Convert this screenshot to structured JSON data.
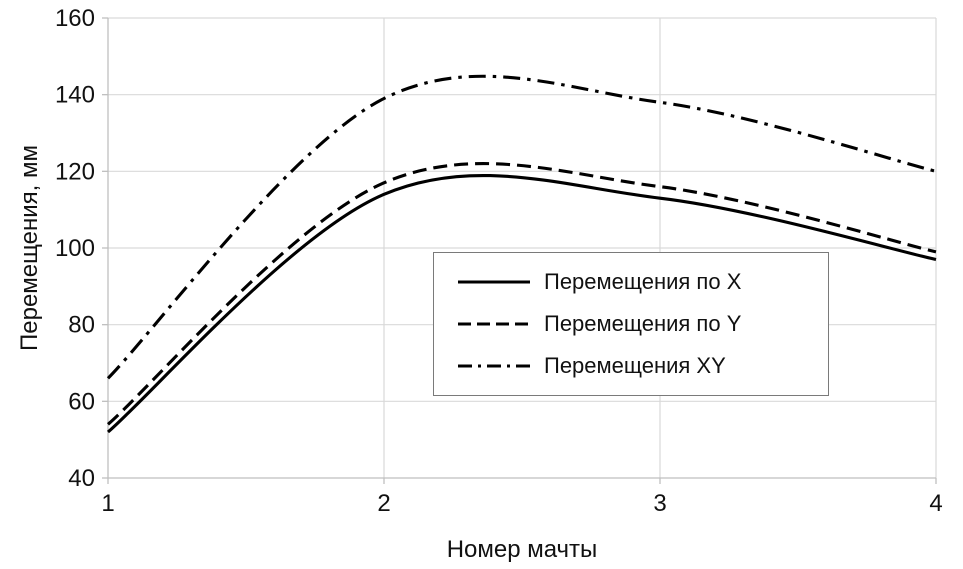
{
  "chart_data": {
    "type": "line",
    "x": [
      1,
      2,
      3,
      4
    ],
    "series": [
      {
        "name": "Перемещения по X",
        "dash": "solid",
        "values": [
          52,
          114,
          113,
          97
        ]
      },
      {
        "name": "Перемещения по Y",
        "dash": "dashed",
        "values": [
          54,
          117,
          116,
          99
        ]
      },
      {
        "name": "Перемещения XY",
        "dash": "dashdot",
        "values": [
          66,
          139,
          138,
          120
        ]
      }
    ],
    "title": "",
    "xlabel": "Номер мачты",
    "ylabel": "Перемещения, мм",
    "xlim": [
      1,
      4
    ],
    "ylim": [
      40,
      160
    ],
    "x_ticks": [
      1,
      2,
      3,
      4
    ],
    "y_ticks": [
      40,
      60,
      80,
      100,
      120,
      140,
      160
    ],
    "grid": true,
    "legend_position": "center",
    "colors": {
      "line": "#000000",
      "grid": "#d9d9d9",
      "axis": "#bfbfbf",
      "text": "#111111"
    }
  }
}
